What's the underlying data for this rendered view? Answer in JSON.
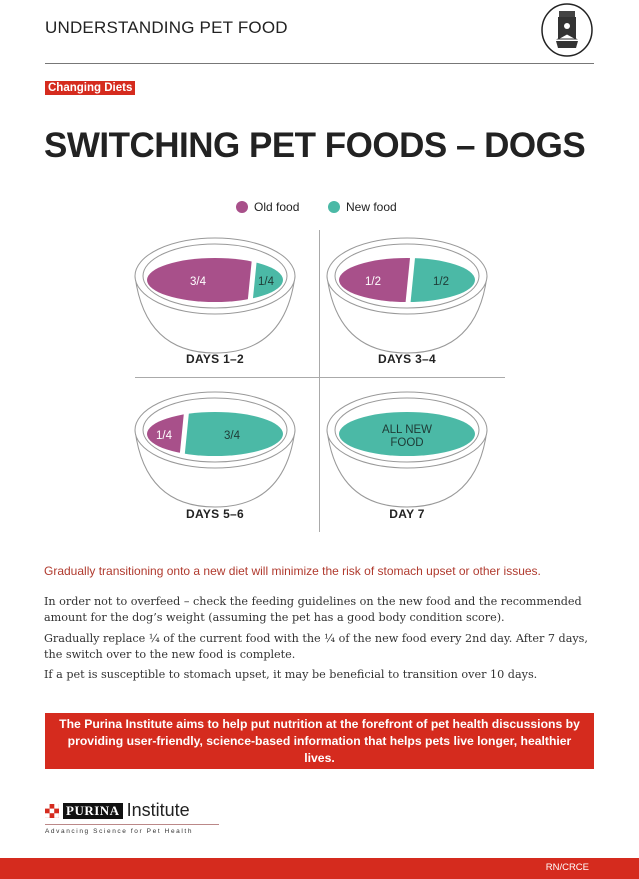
{
  "header": {
    "title": "UNDERSTANDING PET FOOD",
    "icon": "pet-food-bag-icon"
  },
  "tag": "Changing Diets",
  "title": "SWITCHING PET FOODS – DOGS",
  "legend": [
    {
      "label": "Old food",
      "color": "#a8508a"
    },
    {
      "label": "New food",
      "color": "#4bb9a6"
    }
  ],
  "colors": {
    "old": "#a8508a",
    "new": "#4bb9a6",
    "accent": "#d52b1e"
  },
  "stages": [
    {
      "label": "DAYS 1–2",
      "old_fraction": 0.75,
      "old_label": "3/4",
      "new_label": "1/4"
    },
    {
      "label": "DAYS 3–4",
      "old_fraction": 0.5,
      "old_label": "1/2",
      "new_label": "1/2"
    },
    {
      "label": "DAYS 5–6",
      "old_fraction": 0.25,
      "old_label": "1/4",
      "new_label": "3/4"
    },
    {
      "label": "DAY 7",
      "old_fraction": 0,
      "old_label": "",
      "new_label": "ALL NEW FOOD"
    }
  ],
  "lead": "Gradually transitioning onto a new diet will minimize the risk of stomach upset or other issues.",
  "paragraphs": [
    "In order not to overfeed – check the feeding guidelines on the new food and the recommended amount for the dog’s weight (assuming the pet has a good body condition score).",
    "Gradually replace ¼ of the current food with the ¼ of the new food every 2nd day. After 7 days, the switch over to the new food is complete.",
    "If a pet is susceptible to stomach upset, it may be beneficial to transition over 10 days."
  ],
  "banner": "The Purina Institute aims to help put nutrition at the forefront of pet health discussions by providing user-friendly, science-based information that helps pets live longer, healthier lives.",
  "brand": {
    "name": "PURINA",
    "suffix": "Institute",
    "tagline": "Advancing Science for Pet Health"
  },
  "footer_code": "RN/CRCE"
}
